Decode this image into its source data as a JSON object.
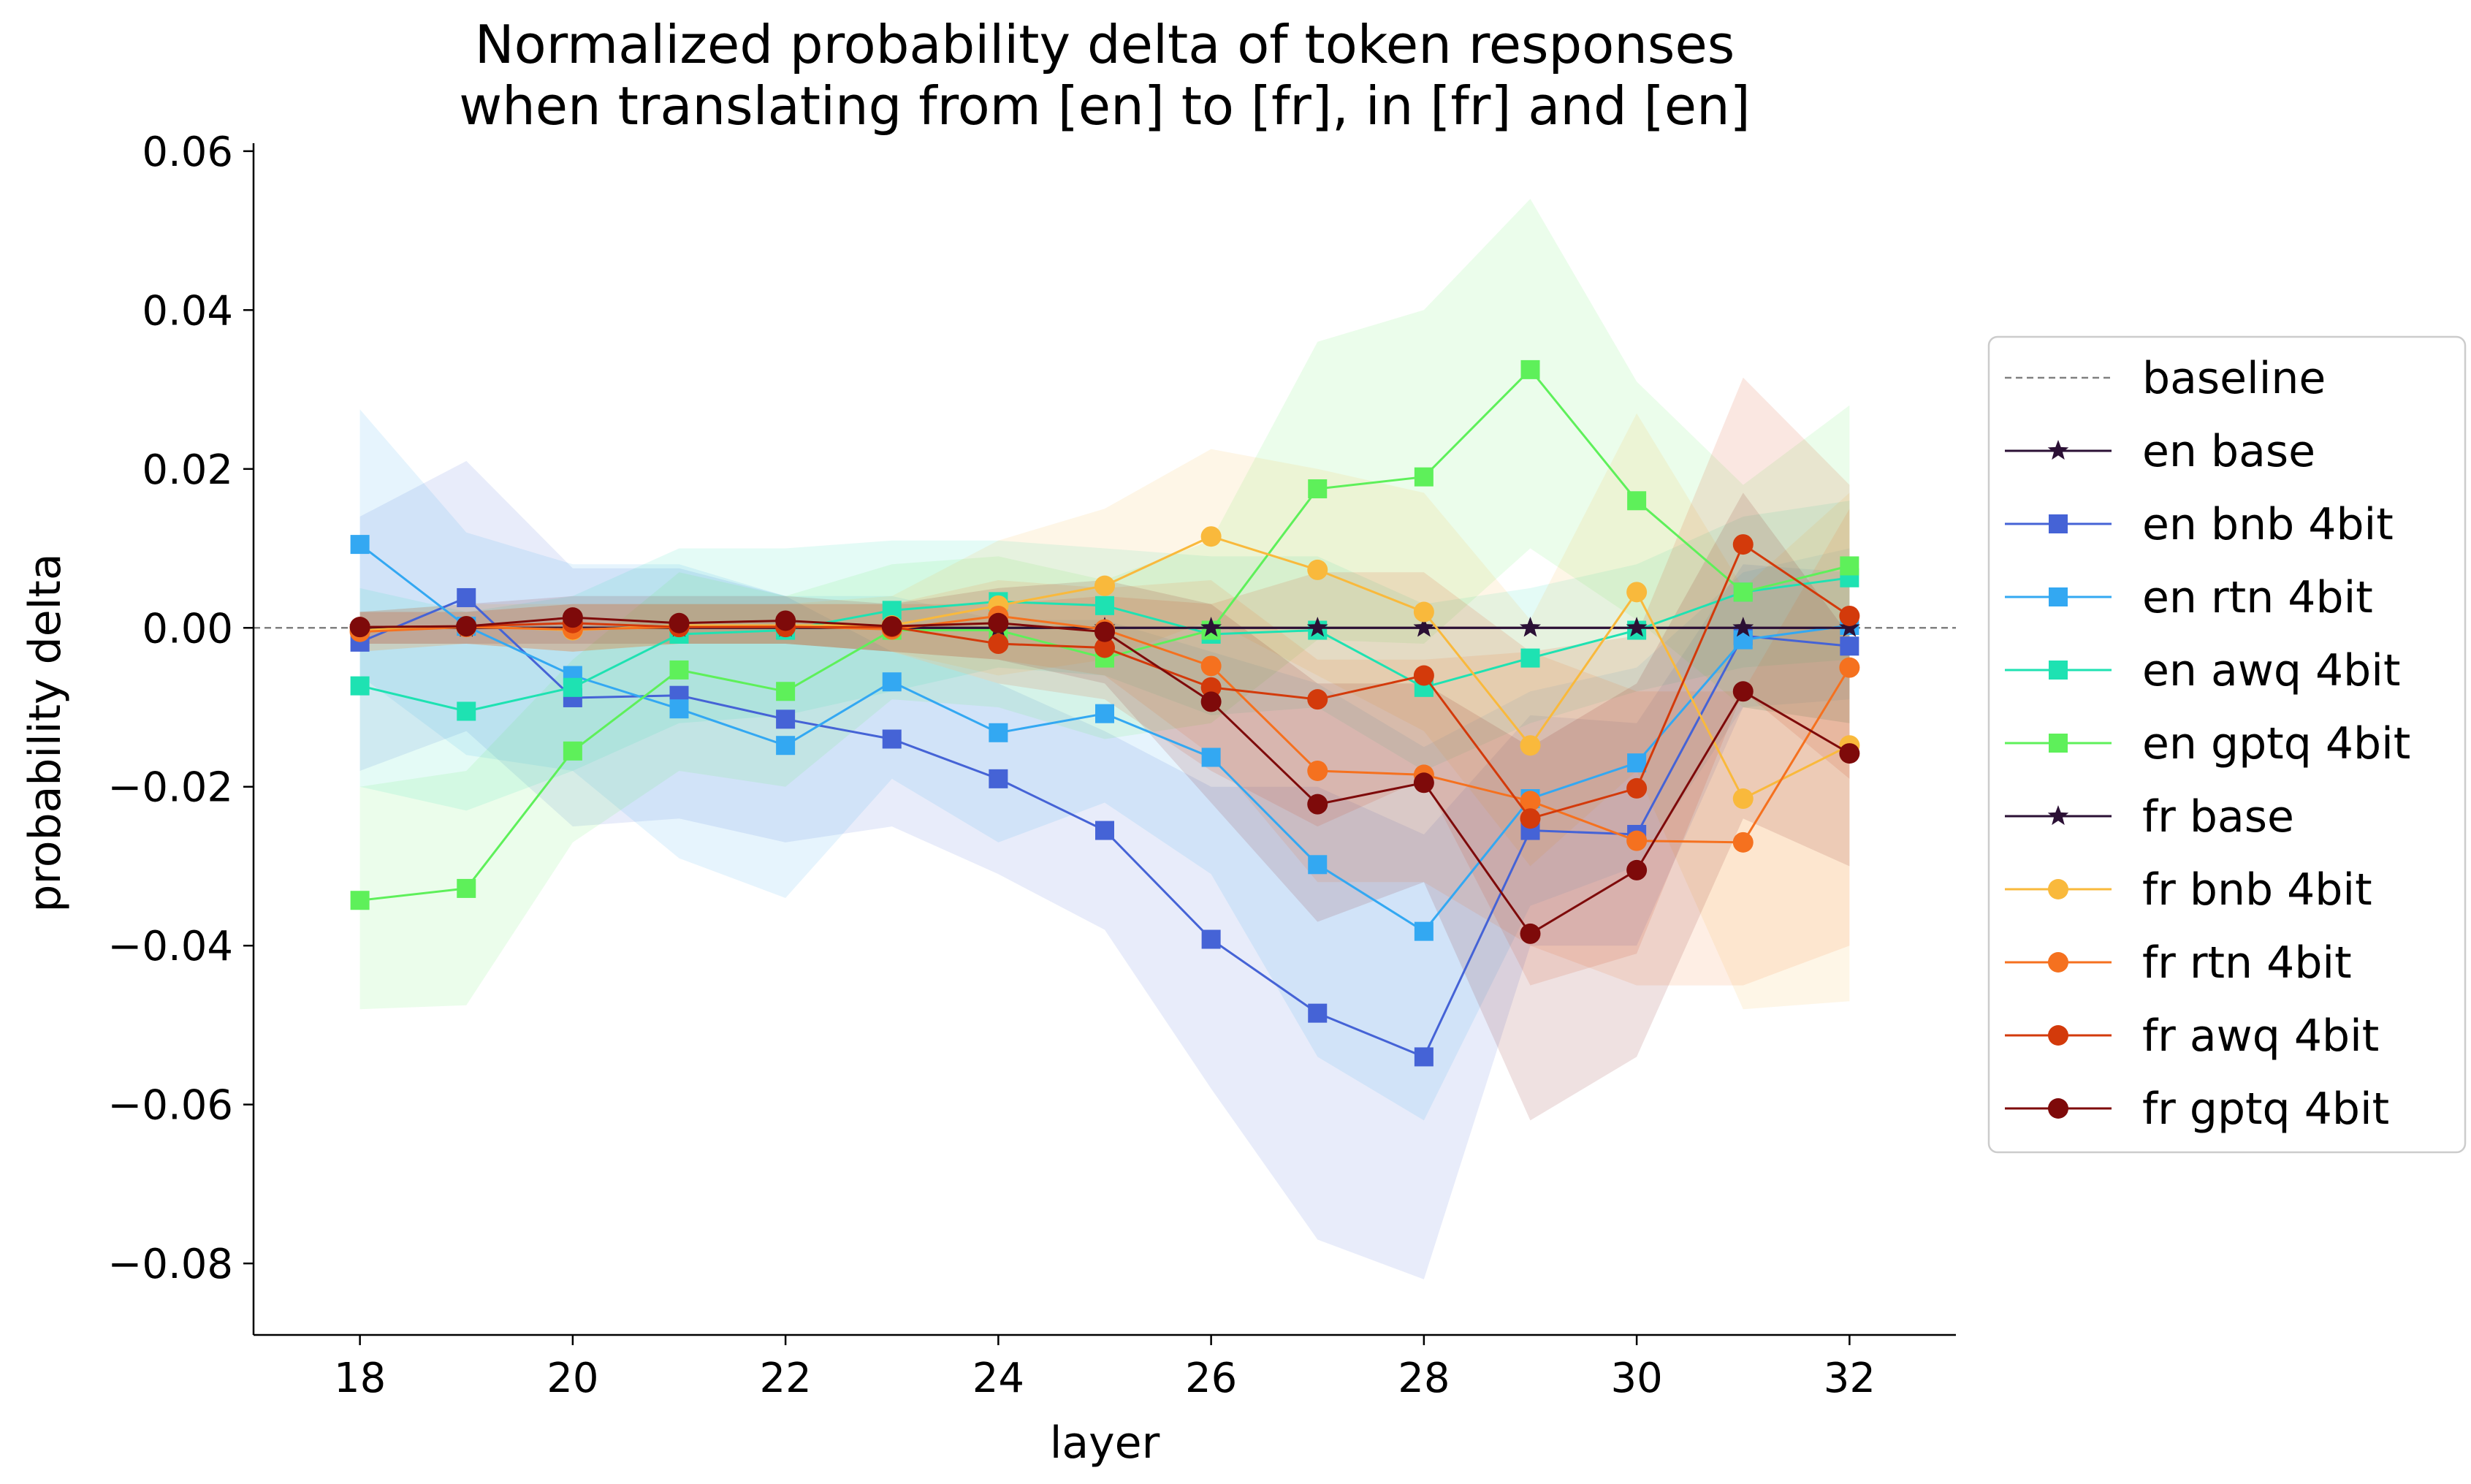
{
  "chart_data": {
    "type": "line",
    "title": "Normalized probability delta of token responses\nwhen translating from [en] to [fr], in [fr] and [en]",
    "xlabel": "layer",
    "ylabel": "probability delta",
    "xlim": [
      17,
      33
    ],
    "ylim": [
      -0.089,
      0.061
    ],
    "xticks": [
      18,
      20,
      22,
      24,
      26,
      28,
      30,
      32
    ],
    "xtick_labels": [
      "18",
      "20",
      "22",
      "24",
      "26",
      "28",
      "30",
      "32"
    ],
    "yticks": [
      0.06,
      0.04,
      0.02,
      0.0,
      -0.02,
      -0.04,
      -0.06,
      -0.08
    ],
    "ytick_labels": [
      "0.06",
      "0.04",
      "0.02",
      "0.00",
      "−0.02",
      "−0.04",
      "−0.06",
      "−0.08"
    ],
    "grid": false,
    "legend_position": "right, outside plot",
    "baseline": {
      "name": "baseline",
      "value": 0.0,
      "color": "#808080",
      "style": "dashed"
    },
    "x": [
      18,
      19,
      20,
      21,
      22,
      23,
      24,
      25,
      26,
      27,
      28,
      29,
      30,
      31,
      32
    ],
    "series": [
      {
        "name": "en base",
        "color": "#2b1035",
        "marker": "star",
        "values": [
          0,
          0,
          0,
          0,
          0,
          0,
          0,
          0,
          0,
          0,
          0,
          0,
          0,
          0,
          0
        ],
        "band": [
          [
            0,
            0,
            0,
            0,
            0,
            0,
            0,
            0,
            0,
            0,
            0,
            0,
            0,
            0,
            0
          ],
          [
            0,
            0,
            0,
            0,
            0,
            0,
            0,
            0,
            0,
            0,
            0,
            0,
            0,
            0,
            0
          ]
        ]
      },
      {
        "name": "en bnb 4bit",
        "color": "#4563d6",
        "marker": "square",
        "values": [
          -0.0018,
          0.0038,
          -0.0088,
          -0.0085,
          -0.0115,
          -0.014,
          -0.019,
          -0.0255,
          -0.0392,
          -0.0485,
          -0.054,
          -0.0255,
          -0.026,
          -0.001,
          -0.0023
        ],
        "band": [
          [
            -0.018,
            -0.013,
            -0.025,
            -0.024,
            -0.027,
            -0.025,
            -0.031,
            -0.038,
            -0.058,
            -0.077,
            -0.082,
            -0.04,
            -0.04,
            -0.01,
            -0.012
          ],
          [
            0.014,
            0.021,
            0.0075,
            0.0075,
            0.004,
            -0.003,
            -0.007,
            -0.013,
            -0.02,
            -0.02,
            -0.026,
            -0.011,
            -0.012,
            0.008,
            0.007
          ]
        ]
      },
      {
        "name": "en rtn 4bit",
        "color": "#33a8f2",
        "marker": "square",
        "values": [
          0.0105,
          0.0002,
          -0.006,
          -0.0102,
          -0.0148,
          -0.0068,
          -0.0132,
          -0.0108,
          -0.0163,
          -0.0298,
          -0.0382,
          -0.0215,
          -0.017,
          -0.0015,
          0.0003
        ],
        "band": [
          [
            -0.006,
            -0.016,
            -0.018,
            -0.029,
            -0.034,
            -0.019,
            -0.027,
            -0.022,
            -0.031,
            -0.054,
            -0.062,
            -0.035,
            -0.03,
            -0.01,
            -0.009
          ],
          [
            0.0275,
            0.012,
            0.008,
            0.008,
            0.004,
            0.004,
            0.001,
            0.001,
            -0.003,
            -0.007,
            -0.015,
            -0.008,
            -0.005,
            0.007,
            0.01
          ]
        ]
      },
      {
        "name": "en awq 4bit",
        "color": "#1ee2b2",
        "marker": "square",
        "values": [
          -0.0073,
          -0.0105,
          -0.0075,
          -0.0008,
          -0.0003,
          0.0022,
          0.0033,
          0.0028,
          -0.0008,
          -0.0003,
          -0.0075,
          -0.0038,
          -0.0003,
          0.0045,
          0.0063
        ],
        "band": [
          [
            -0.02,
            -0.023,
            -0.018,
            -0.012,
            -0.011,
            -0.008,
            -0.005,
            -0.006,
            -0.011,
            -0.01,
            -0.018,
            -0.012,
            -0.008,
            -0.005,
            -0.004
          ],
          [
            0.005,
            0.002,
            0.004,
            0.01,
            0.01,
            0.011,
            0.011,
            0.01,
            0.009,
            0.009,
            0.003,
            0.005,
            0.008,
            0.014,
            0.016
          ]
        ]
      },
      {
        "name": "en gptq 4bit",
        "color": "#5ef05a",
        "marker": "square",
        "values": [
          -0.0343,
          -0.0328,
          -0.0155,
          -0.0053,
          -0.008,
          -0.0003,
          -0.0003,
          -0.0038,
          -0.0003,
          0.0175,
          0.019,
          0.0325,
          0.016,
          0.0045,
          0.0078
        ],
        "band": [
          [
            -0.048,
            -0.0475,
            -0.027,
            -0.018,
            -0.02,
            -0.009,
            -0.01,
            -0.014,
            -0.012,
            -0.0015,
            -0.002,
            0.01,
            0.001,
            -0.01,
            -0.012
          ],
          [
            -0.02,
            -0.018,
            -0.004,
            0.007,
            0.004,
            0.008,
            0.009,
            0.006,
            0.011,
            0.036,
            0.04,
            0.054,
            0.031,
            0.018,
            0.028
          ]
        ]
      },
      {
        "name": "fr base",
        "color": "#2b1035",
        "marker": "star",
        "values": [
          0,
          0,
          0,
          0,
          0,
          0,
          0,
          0,
          0,
          0,
          0,
          0,
          0,
          0,
          0
        ],
        "band": [
          [
            0,
            0,
            0,
            0,
            0,
            0,
            0,
            0,
            0,
            0,
            0,
            0,
            0,
            0,
            0
          ],
          [
            0,
            0,
            0,
            0,
            0,
            0,
            0,
            0,
            0,
            0,
            0,
            0,
            0,
            0,
            0
          ]
        ]
      },
      {
        "name": "fr bnb 4bit",
        "color": "#f9b93c",
        "marker": "circle",
        "values": [
          -0.0003,
          0.0002,
          -0.0003,
          0.0003,
          0.0003,
          0.0003,
          0.0028,
          0.0053,
          0.0115,
          0.0073,
          0.002,
          -0.0148,
          0.0045,
          -0.0215,
          -0.0148
        ],
        "band": [
          [
            -0.003,
            -0.002,
            -0.003,
            -0.002,
            -0.002,
            -0.003,
            -0.006,
            -0.004,
            0.001,
            -0.006,
            -0.013,
            -0.03,
            -0.018,
            -0.048,
            -0.047
          ],
          [
            0.002,
            0.003,
            0.003,
            0.003,
            0.003,
            0.004,
            0.011,
            0.015,
            0.0225,
            0.02,
            0.017,
            0.001,
            0.027,
            0.005,
            0.017
          ]
        ]
      },
      {
        "name": "fr rtn 4bit",
        "color": "#f5711f",
        "marker": "circle",
        "values": [
          -0.0005,
          0.0001,
          -0.0002,
          0.0001,
          0.0002,
          -0.0002,
          0.0015,
          -0.0002,
          -0.0048,
          -0.018,
          -0.0185,
          -0.0218,
          -0.0268,
          -0.027,
          -0.005
        ],
        "band": [
          [
            -0.003,
            -0.002,
            -0.003,
            -0.002,
            -0.002,
            -0.003,
            -0.004,
            -0.006,
            -0.016,
            -0.032,
            -0.032,
            -0.04,
            -0.045,
            -0.045,
            -0.04
          ],
          [
            0.002,
            0.002,
            0.003,
            0.003,
            0.003,
            0.003,
            0.006,
            0.005,
            0.006,
            -0.004,
            -0.004,
            -0.003,
            -0.008,
            -0.008,
            0.015
          ]
        ]
      },
      {
        "name": "fr awq 4bit",
        "color": "#d33a0b",
        "marker": "circle",
        "values": [
          0.0001,
          0.0002,
          0.0006,
          0.0001,
          0.0001,
          0.0001,
          -0.002,
          -0.0025,
          -0.0075,
          -0.009,
          -0.006,
          -0.024,
          -0.0202,
          0.0105,
          0.0015
        ],
        "band": [
          [
            -0.002,
            -0.002,
            -0.003,
            -0.002,
            -0.002,
            -0.003,
            -0.007,
            -0.009,
            -0.018,
            -0.025,
            -0.019,
            -0.045,
            -0.041,
            -0.008,
            -0.019
          ],
          [
            0.002,
            0.002,
            0.003,
            0.003,
            0.003,
            0.003,
            0.003,
            0.004,
            0.003,
            0.007,
            0.007,
            -0.003,
            -0.001,
            0.0315,
            0.018
          ]
        ]
      },
      {
        "name": "fr gptq 4bit",
        "color": "#7e0a0a",
        "marker": "circle",
        "values": [
          0.0001,
          0.0002,
          0.0013,
          0.0006,
          0.0009,
          0.0002,
          0.0006,
          -0.0005,
          -0.0093,
          -0.0222,
          -0.0195,
          -0.0385,
          -0.0305,
          -0.008,
          -0.0158
        ],
        "band": [
          [
            -0.002,
            -0.002,
            -0.002,
            -0.002,
            -0.002,
            -0.003,
            -0.004,
            -0.007,
            -0.022,
            -0.037,
            -0.032,
            -0.062,
            -0.054,
            -0.024,
            -0.03
          ],
          [
            0.002,
            0.003,
            0.004,
            0.004,
            0.004,
            0.003,
            0.005,
            0.006,
            0.003,
            -0.007,
            -0.007,
            -0.015,
            -0.007,
            0.017,
            -0.001
          ]
        ]
      }
    ]
  }
}
